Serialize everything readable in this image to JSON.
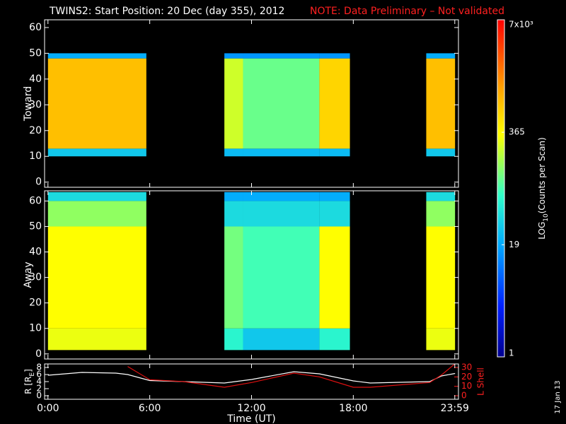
{
  "title": "TWINS2: Start Position: 20 Dec (day 355), 2012",
  "note": "NOTE: Data Preliminary – Not validated",
  "stamp": "17 Jan 13",
  "colorbar": {
    "label": [
      "LOG",
      "10",
      "(Counts per Scan)"
    ],
    "lim": [
      1,
      7000
    ],
    "log": true,
    "ticks": [
      {
        "value": 7000,
        "label": "7x10³"
      },
      365,
      19,
      1
    ]
  },
  "chart_data": [
    {
      "type": "heatmap",
      "ylabel": "Toward",
      "ylim": [
        -2,
        63
      ],
      "yticks": [
        0,
        10,
        20,
        30,
        40,
        50,
        60
      ],
      "xbins": [
        0,
        5.8,
        10.4,
        11.5,
        16.0,
        17.8,
        22.3,
        24
      ],
      "ybins": [
        -2,
        10,
        13,
        48,
        50,
        63
      ],
      "values": [
        [
          null,
          null,
          null,
          null,
          null,
          null,
          null
        ],
        [
          30,
          null,
          25,
          25,
          25,
          null,
          30
        ],
        [
          800,
          null,
          240,
          110,
          600,
          null,
          800
        ],
        [
          20,
          null,
          15,
          15,
          15,
          null,
          20
        ],
        [
          null,
          null,
          null,
          null,
          null,
          null,
          null
        ]
      ]
    },
    {
      "type": "heatmap",
      "ylabel": "Away",
      "ylim": [
        -2,
        64
      ],
      "yticks": [
        0,
        10,
        20,
        30,
        40,
        50,
        60
      ],
      "xbins": [
        0,
        5.8,
        10.4,
        11.5,
        16.0,
        17.8,
        22.3,
        24
      ],
      "ybins": [
        -2,
        1.5,
        10,
        50,
        60,
        63.5
      ],
      "values": [
        [
          null,
          null,
          null,
          null,
          null,
          null,
          null
        ],
        [
          300,
          null,
          60,
          30,
          60,
          null,
          300
        ],
        [
          350,
          null,
          120,
          80,
          350,
          null,
          350
        ],
        [
          150,
          null,
          40,
          40,
          40,
          null,
          150
        ],
        [
          40,
          null,
          20,
          20,
          20,
          null,
          40
        ]
      ]
    },
    {
      "type": "line",
      "ylabel": [
        "R [R",
        "E",
        "]"
      ],
      "y2label": "L Shell",
      "xlabel": "Time (UT)",
      "xlim": [
        -0.2,
        24.2
      ],
      "xticks": [
        {
          "value": 0,
          "label": "0:00"
        },
        {
          "value": 6,
          "label": "6:00"
        },
        {
          "value": 12,
          "label": "12:00"
        },
        {
          "value": 18,
          "label": "18:00"
        },
        {
          "value": 23.983,
          "label": "23:59"
        }
      ],
      "ylim": [
        -1,
        9
      ],
      "yticks": [
        0,
        2,
        4,
        6,
        8
      ],
      "y2lim": [
        -3.75,
        33.75
      ],
      "y2ticks": [
        0,
        10,
        20,
        30
      ],
      "y2color": "#ff2020",
      "x": [
        0,
        2,
        4,
        4.7,
        6,
        8,
        10.4,
        12,
        14.5,
        16,
        18,
        19,
        22.5,
        23.2,
        24
      ],
      "series": [
        {
          "color": "#ffffff",
          "values": [
            5.8,
            6.6,
            6.4,
            6.0,
            4.3,
            4.0,
            3.6,
            4.6,
            6.8,
            6.2,
            4.2,
            3.6,
            4.0,
            5.6,
            6.3
          ]
        },
        {
          "color": "#e01010",
          "axis": "y2",
          "values": [
            null,
            null,
            null,
            31,
            17,
            15,
            9,
            14,
            24,
            20,
            9,
            9,
            14,
            22,
            34
          ]
        }
      ]
    }
  ]
}
